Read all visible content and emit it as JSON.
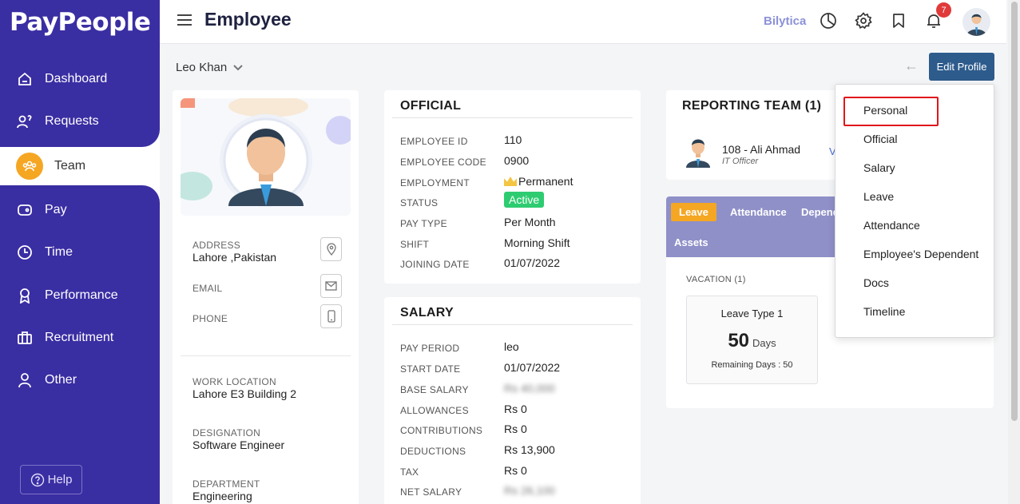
{
  "app": {
    "logo": "PayPeople",
    "brand": "Bilytica",
    "page_title": "Employee",
    "notification_count": "7"
  },
  "sidebar": {
    "items": [
      {
        "label": "Dashboard",
        "icon": "dashboard-icon"
      },
      {
        "label": "Requests",
        "icon": "requests-icon"
      },
      {
        "label": "Team",
        "icon": "team-icon",
        "active": true
      },
      {
        "label": "Pay",
        "icon": "pay-icon"
      },
      {
        "label": "Time",
        "icon": "clock-icon"
      },
      {
        "label": "Performance",
        "icon": "award-icon"
      },
      {
        "label": "Recruitment",
        "icon": "briefcase-icon"
      },
      {
        "label": "Other",
        "icon": "user-icon"
      }
    ],
    "help_label": "Help"
  },
  "subheader": {
    "employee_name": "Leo Khan",
    "edit_profile": "Edit Profile"
  },
  "profile": {
    "address_label": "ADDRESS",
    "address": "Lahore ,Pakistan",
    "email_label": "EMAIL",
    "phone_label": "PHONE",
    "work_location_label": "WORK LOCATION",
    "work_location": "Lahore E3 Building 2",
    "designation_label": "DESIGNATION",
    "designation": "Software Engineer",
    "department_label": "DEPARTMENT",
    "department": "Engineering"
  },
  "official": {
    "title": "OFFICIAL",
    "rows": [
      {
        "label": "EMPLOYEE ID",
        "value": "110"
      },
      {
        "label": "EMPLOYEE CODE",
        "value": "0900"
      },
      {
        "label": "EMPLOYMENT",
        "value": "Permanent"
      },
      {
        "label": "STATUS",
        "value": "Active"
      },
      {
        "label": "PAY TYPE",
        "value": "Per Month"
      },
      {
        "label": "SHIFT",
        "value": "Morning Shift"
      },
      {
        "label": "JOINING DATE",
        "value": "01/07/2022"
      }
    ]
  },
  "salary": {
    "title": "SALARY",
    "rows": [
      {
        "label": "PAY PERIOD",
        "value": "leo"
      },
      {
        "label": "START DATE",
        "value": "01/07/2022"
      },
      {
        "label": "BASE SALARY",
        "value": "Rs 40,000"
      },
      {
        "label": "ALLOWANCES",
        "value": "Rs 0"
      },
      {
        "label": "CONTRIBUTIONS",
        "value": "Rs 0"
      },
      {
        "label": "DEDUCTIONS",
        "value": "Rs 13,900"
      },
      {
        "label": "TAX",
        "value": "Rs 0"
      },
      {
        "label": "NET SALARY",
        "value": "Rs 26,100"
      }
    ]
  },
  "reporting": {
    "title": "REPORTING TEAM (1)",
    "member_name": "108 - Ali Ahmad",
    "member_role": "IT Officer",
    "link": "V"
  },
  "tabs": {
    "items": [
      "Leave",
      "Attendance",
      "Depend",
      "Assets"
    ],
    "vacation_label": "VACATION (1)",
    "leave_type": "Leave Type 1",
    "leave_days": "50",
    "days_unit": "Days",
    "remaining": "Remaining Days : 50"
  },
  "dropdown": {
    "items": [
      "Personal",
      "Official",
      "Salary",
      "Leave",
      "Attendance",
      "Employee's Dependent",
      "Docs",
      "Timeline"
    ],
    "highlighted": "Personal"
  },
  "colors": {
    "sidebar": "#3a2ea3",
    "accent": "#f5a623",
    "button": "#2d5b8c",
    "active_status": "#2ecc71",
    "highlight": "#e0161b"
  }
}
